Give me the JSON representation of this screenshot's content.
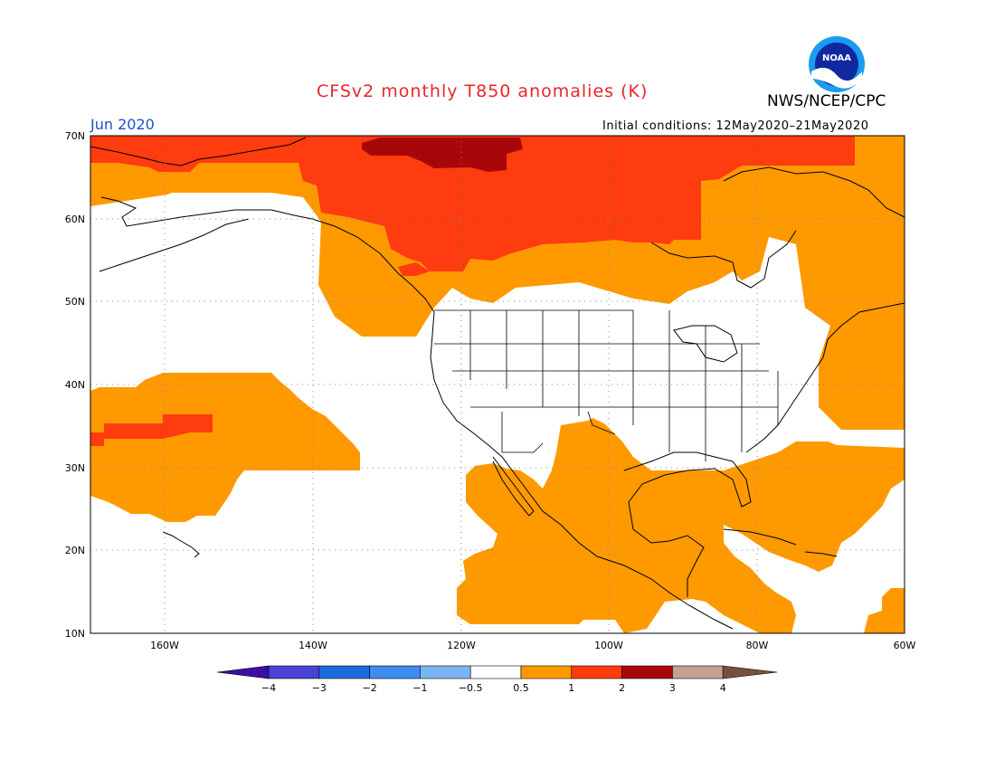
{
  "header": {
    "title": "CFSv2 monthly T850 anomalies (K)",
    "org": "NWS/NCEP/CPC",
    "logo_text": "NOAA",
    "month": "Jun 2020",
    "initial_conditions": "Initial conditions: 12May2020–21May2020"
  },
  "map": {
    "lat_labels": [
      "70N",
      "60N",
      "50N",
      "40N",
      "30N",
      "20N",
      "10N"
    ],
    "lon_labels": [
      "160W",
      "140W",
      "120W",
      "100W",
      "80W",
      "60W"
    ],
    "lon_range": [
      -172,
      -60
    ],
    "lat_range": [
      10,
      70
    ]
  },
  "colorbar": {
    "labels": [
      "−4",
      "−3",
      "−2",
      "−1",
      "−0.5",
      "0.5",
      "1",
      "2",
      "3",
      "4"
    ],
    "colors": [
      "#3a0fa6",
      "#4a43d8",
      "#1e6be0",
      "#3d8ef0",
      "#7cb5f4",
      "#ffffff",
      "#ff9900",
      "#ff3b10",
      "#a8070a",
      "#c8a090",
      "#7a4f3f"
    ]
  },
  "colors": {
    "anom_05_1": "#ff9900",
    "anom_1_2": "#ff3b10",
    "anom_2_3": "#a8070a"
  }
}
